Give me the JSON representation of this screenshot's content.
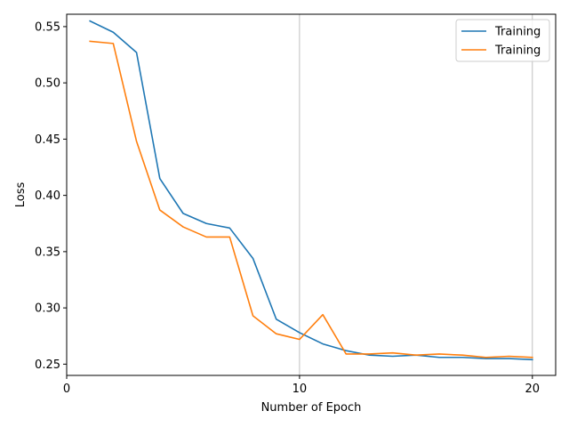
{
  "chart_data": {
    "type": "line",
    "title": "",
    "xlabel": "Number of Epoch",
    "ylabel": "Loss",
    "xlim": [
      0,
      21
    ],
    "ylim": [
      0.24,
      0.561
    ],
    "xticks": [
      0,
      10,
      20
    ],
    "xtick_labels": [
      "0",
      "10",
      "20"
    ],
    "yticks": [
      0.25,
      0.3,
      0.35,
      0.4,
      0.45,
      0.5,
      0.55
    ],
    "ytick_labels": [
      "0.25",
      "0.30",
      "0.35",
      "0.40",
      "0.45",
      "0.50",
      "0.55"
    ],
    "grid": "x-major",
    "legend_position": "top-right",
    "x": [
      1,
      2,
      3,
      4,
      5,
      6,
      7,
      8,
      9,
      10,
      11,
      12,
      13,
      14,
      15,
      16,
      17,
      18,
      19,
      20
    ],
    "series": [
      {
        "name": "Training",
        "color": "#1f77b4",
        "values": [
          0.555,
          0.545,
          0.527,
          0.415,
          0.384,
          0.375,
          0.371,
          0.344,
          0.29,
          0.278,
          0.268,
          0.262,
          0.258,
          0.257,
          0.258,
          0.256,
          0.256,
          0.255,
          0.255,
          0.254
        ]
      },
      {
        "name": "Training",
        "color": "#ff7f0e",
        "values": [
          0.537,
          0.535,
          0.448,
          0.387,
          0.372,
          0.363,
          0.363,
          0.293,
          0.277,
          0.272,
          0.294,
          0.259,
          0.259,
          0.26,
          0.258,
          0.259,
          0.258,
          0.256,
          0.257,
          0.256
        ]
      }
    ]
  }
}
